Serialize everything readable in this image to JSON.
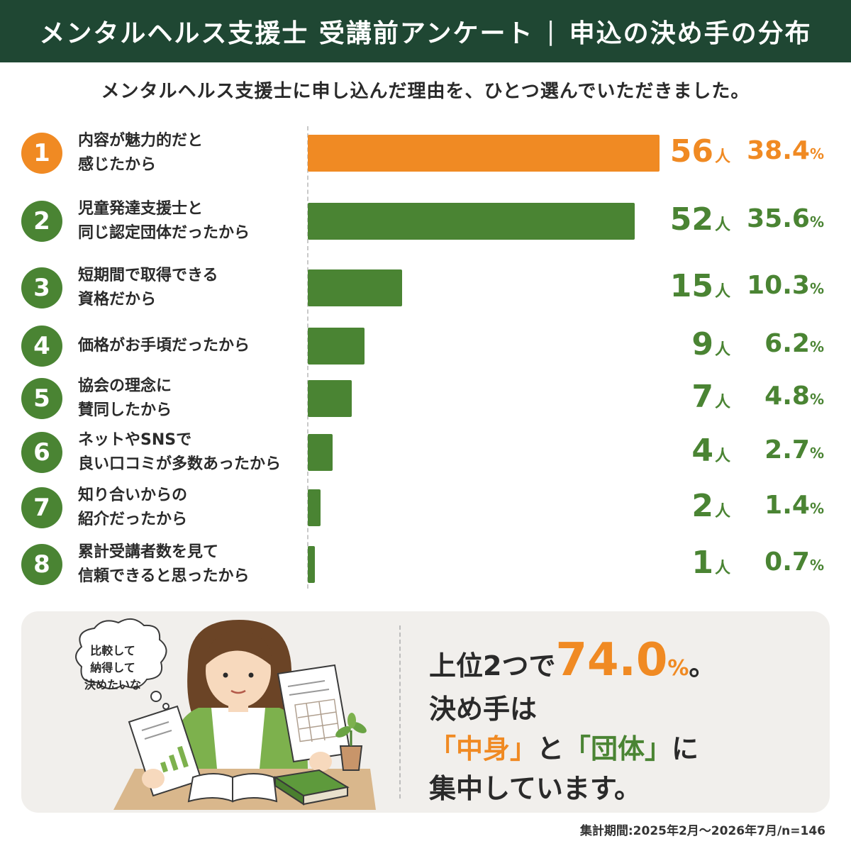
{
  "header": {
    "title_left": "メンタルヘルス支援士 受講前アンケート",
    "separator": "|",
    "title_right": "申込の決め手の分布"
  },
  "subtitle": "メンタルヘルス支援士に申し込んだ理由を、ひとつ選んでいただきました。",
  "colors": {
    "highlight": "#f08a23",
    "primary": "#4a8433",
    "header_bg": "#1f4733"
  },
  "chart_data": {
    "type": "bar",
    "orientation": "horizontal",
    "categories": [
      "内容が魅力的だと\n感じたから",
      "児童発達支援士と\n同じ認定団体だったから",
      "短期間で取得できる\n資格だから",
      "価格がお手頃だったから",
      "協会の理念に\n賛同したから",
      "ネットやSNSで\n良い口コミが多数あったから",
      "知り合いからの\n紹介だったから",
      "累計受講者数を見て\n信頼できると思ったから"
    ],
    "ranks": [
      "1",
      "2",
      "3",
      "4",
      "5",
      "6",
      "7",
      "8"
    ],
    "values": [
      56,
      52,
      15,
      9,
      7,
      4,
      2,
      1
    ],
    "percents": [
      "38.4",
      "35.6",
      "10.3",
      "6.2",
      "4.8",
      "2.7",
      "1.4",
      "0.7"
    ],
    "count_unit": "人",
    "percent_unit": "%",
    "highlight_index": 0,
    "grid": false
  },
  "bubble": {
    "text": "比較して\n納得して\n決めたいな"
  },
  "summary": {
    "line1_prefix": "上位2つで",
    "line1_value": "74.0",
    "line1_unit": "%",
    "line1_suffix": "。",
    "line2": "決め手は",
    "line3_part1": "「中身」",
    "line3_part2": "と",
    "line3_part3": "「団体」",
    "line3_part4": "に",
    "line4": "集中しています。"
  },
  "footnote": "集計期間:2025年2月〜2026年7月/n=146"
}
